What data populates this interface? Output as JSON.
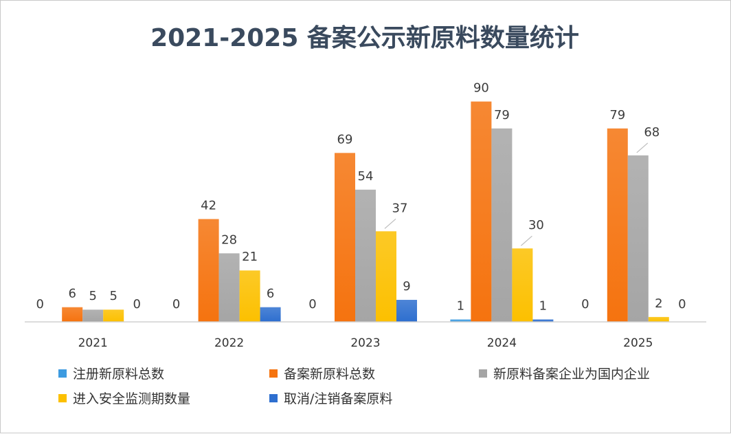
{
  "chart_data": {
    "type": "bar",
    "title": "2021-2025 备案公示新原料数量统计",
    "categories": [
      "2021",
      "2022",
      "2023",
      "2024",
      "2025"
    ],
    "ylim": [
      0,
      100
    ],
    "grid": false,
    "legend_position": "bottom",
    "series": [
      {
        "name": "注册新原料总数",
        "color": "#3d9be0",
        "values": [
          0,
          0,
          0,
          1,
          0
        ]
      },
      {
        "name": "备案新原料总数",
        "color": "#f5730f",
        "values": [
          6,
          42,
          69,
          90,
          79
        ]
      },
      {
        "name": "新原料备案企业为国内企业",
        "color": "#a5a5a5",
        "values": [
          5,
          28,
          54,
          79,
          68
        ]
      },
      {
        "name": "进入安全监测期数量",
        "color": "#fcc000",
        "values": [
          5,
          21,
          37,
          30,
          2
        ]
      },
      {
        "name": "取消/注销备案原料",
        "color": "#2e6fcf",
        "values": [
          0,
          6,
          9,
          1,
          0
        ]
      }
    ]
  }
}
